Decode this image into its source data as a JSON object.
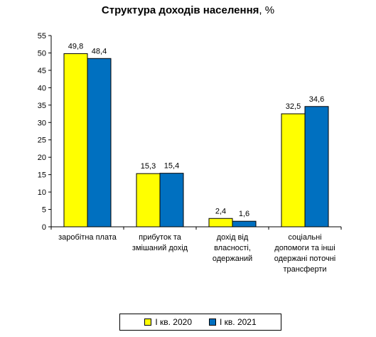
{
  "chart_data": {
    "type": "bar",
    "title_main": "Структура доходів населення",
    "title_unit": ", %",
    "categories": [
      [
        "заробітна плата"
      ],
      [
        "прибуток та",
        "змішаний дохід"
      ],
      [
        "дохід від",
        "власності,",
        "одержаний"
      ],
      [
        "соціальні",
        "допомоги та інші",
        "одержані поточні",
        "трансферти"
      ]
    ],
    "series": [
      {
        "name": "І кв. 2020",
        "values": [
          49.8,
          15.3,
          2.4,
          32.5
        ],
        "labels": [
          "49,8",
          "15,3",
          "2,4",
          "32,5"
        ],
        "color": "#FFFF00"
      },
      {
        "name": "І кв. 2021",
        "values": [
          48.4,
          15.4,
          1.6,
          34.6
        ],
        "labels": [
          "48,4",
          "15,4",
          "1,6",
          "34,6"
        ],
        "color": "#0070C0"
      }
    ],
    "ylim": [
      0,
      55
    ],
    "yticks": [
      0,
      5,
      10,
      15,
      20,
      25,
      30,
      35,
      40,
      45,
      50,
      55
    ],
    "grid": false,
    "legend_position": "bottom"
  }
}
